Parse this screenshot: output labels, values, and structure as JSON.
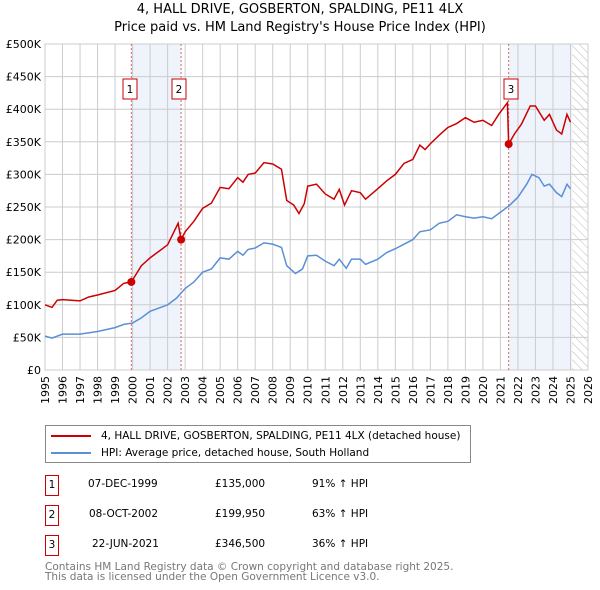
{
  "title": "4, HALL DRIVE, GOSBERTON, SPALDING, PE11 4LX",
  "subtitle": "Price paid vs. HM Land Registry's House Price Index (HPI)",
  "chart_data": {
    "type": "line",
    "title": "4, HALL DRIVE, GOSBERTON, SPALDING, PE11 4LX",
    "subtitle": "Price paid vs. HM Land Registry's House Price Index (HPI)",
    "xlim": [
      1995,
      2026
    ],
    "ylim": [
      0,
      500000
    ],
    "x_ticks": [
      "1995",
      "1996",
      "1997",
      "1998",
      "1999",
      "2000",
      "2001",
      "2002",
      "2003",
      "2004",
      "2005",
      "2006",
      "2007",
      "2008",
      "2009",
      "2010",
      "2011",
      "2012",
      "2013",
      "2014",
      "2015",
      "2016",
      "2017",
      "2018",
      "2019",
      "2020",
      "2021",
      "2022",
      "2023",
      "2024",
      "2025",
      "2026"
    ],
    "y_ticks": [
      {
        "v": 0,
        "label": "£0"
      },
      {
        "v": 50000,
        "label": "£50K"
      },
      {
        "v": 100000,
        "label": "£100K"
      },
      {
        "v": 150000,
        "label": "£150K"
      },
      {
        "v": 200000,
        "label": "£200K"
      },
      {
        "v": 250000,
        "label": "£250K"
      },
      {
        "v": 300000,
        "label": "£300K"
      },
      {
        "v": 350000,
        "label": "£350K"
      },
      {
        "v": 400000,
        "label": "£400K"
      },
      {
        "v": 450000,
        "label": "£450K"
      },
      {
        "v": 500000,
        "label": "£500K"
      }
    ],
    "grid": true,
    "series": [
      {
        "name": "4, HALL DRIVE, GOSBERTON, SPALDING, PE11 4LX (detached house)",
        "color": "#cc0000",
        "x": [
          1995,
          1995.4,
          1995.7,
          1996,
          1997,
          1997.5,
          1998,
          1999,
          1999.5,
          1999.93,
          2000.5,
          2001,
          2001.5,
          2002,
          2002.6,
          2002.77,
          2003,
          2003.5,
          2004,
          2004.5,
          2005,
          2005.5,
          2006,
          2006.3,
          2006.6,
          2007,
          2007.5,
          2008,
          2008.5,
          2008.8,
          2009.2,
          2009.5,
          2009.8,
          2010,
          2010.5,
          2011,
          2011.5,
          2011.8,
          2012.1,
          2012.5,
          2013,
          2013.3,
          2014,
          2014.5,
          2015,
          2015.5,
          2016,
          2016.4,
          2016.7,
          2017,
          2017.5,
          2018,
          2018.5,
          2019,
          2019.5,
          2020,
          2020.5,
          2020.9,
          2021.4,
          2021.47,
          2021.8,
          2022.2,
          2022.7,
          2023,
          2023.5,
          2023.8,
          2024.2,
          2024.5,
          2024.8,
          2025
        ],
        "y": [
          100,
          96,
          107,
          108,
          106,
          112,
          115,
          122,
          133,
          135,
          160,
          172,
          182,
          192,
          225,
          200,
          212,
          228,
          248,
          256,
          280,
          278,
          295,
          288,
          300,
          302,
          318,
          316,
          308,
          260,
          253,
          240,
          255,
          282,
          285,
          270,
          262,
          277,
          253,
          275,
          272,
          262,
          278,
          290,
          300,
          317,
          323,
          345,
          338,
          347,
          360,
          372,
          378,
          387,
          380,
          383,
          375,
          392,
          410,
          346.5,
          362,
          377,
          405,
          405,
          383,
          392,
          368,
          362,
          392,
          380
        ]
      },
      {
        "name": "HPI: Average price, detached house, South Holland",
        "color": "#5b8fd6",
        "x": [
          1995,
          1995.4,
          1996,
          1997,
          1998,
          1999,
          1999.5,
          2000,
          2000.5,
          2001,
          2001.5,
          2002,
          2002.5,
          2003,
          2003.5,
          2004,
          2004.5,
          2005,
          2005.5,
          2006,
          2006.3,
          2006.6,
          2007,
          2007.5,
          2008,
          2008.5,
          2008.8,
          2009.3,
          2009.7,
          2010,
          2010.5,
          2011,
          2011.5,
          2011.8,
          2012.2,
          2012.5,
          2013,
          2013.3,
          2014,
          2014.5,
          2015,
          2015.5,
          2016,
          2016.4,
          2017,
          2017.5,
          2018,
          2018.5,
          2019,
          2019.5,
          2020,
          2020.5,
          2021,
          2021.5,
          2022,
          2022.5,
          2022.8,
          2023.2,
          2023.5,
          2023.8,
          2024.2,
          2024.5,
          2024.8,
          2025
        ],
        "y": [
          52,
          49,
          55,
          55,
          59,
          65,
          70,
          72,
          80,
          90,
          95,
          100,
          110,
          125,
          135,
          150,
          155,
          172,
          170,
          182,
          176,
          185,
          187,
          195,
          193,
          188,
          160,
          148,
          155,
          175,
          176,
          167,
          160,
          170,
          156,
          170,
          170,
          162,
          170,
          180,
          186,
          193,
          200,
          212,
          215,
          225,
          228,
          238,
          235,
          233,
          235,
          232,
          242,
          252,
          265,
          285,
          300,
          295,
          282,
          285,
          272,
          266,
          285,
          278
        ]
      }
    ],
    "y_units": "thousands GBP",
    "sales": [
      {
        "n": "1",
        "x": 1999.93,
        "y": 135
      },
      {
        "n": "2",
        "x": 2002.77,
        "y": 199.95
      },
      {
        "n": "3",
        "x": 2021.47,
        "y": 346.5
      }
    ],
    "shaded_ranges": [
      [
        1999.93,
        2002.77
      ],
      [
        2021.47,
        2025.1
      ]
    ],
    "hatched_range": [
      2025.1,
      2026
    ]
  },
  "legend": [
    {
      "label": "4, HALL DRIVE, GOSBERTON, SPALDING, PE11 4LX (detached house)",
      "color": "#cc0000"
    },
    {
      "label": "HPI: Average price, detached house, South Holland",
      "color": "#5b8fd6"
    }
  ],
  "table": [
    {
      "n": "1",
      "date": "07-DEC-1999",
      "price": "£135,000",
      "hpi": "91% ↑ HPI"
    },
    {
      "n": "2",
      "date": "08-OCT-2002",
      "price": "£199,950",
      "hpi": "63% ↑ HPI"
    },
    {
      "n": "3",
      "date": "22-JUN-2021",
      "price": "£346,500",
      "hpi": "36% ↑ HPI"
    }
  ],
  "footer": [
    "Contains HM Land Registry data © Crown copyright and database right 2025.",
    "This data is licensed under the Open Government Licence v3.0."
  ]
}
